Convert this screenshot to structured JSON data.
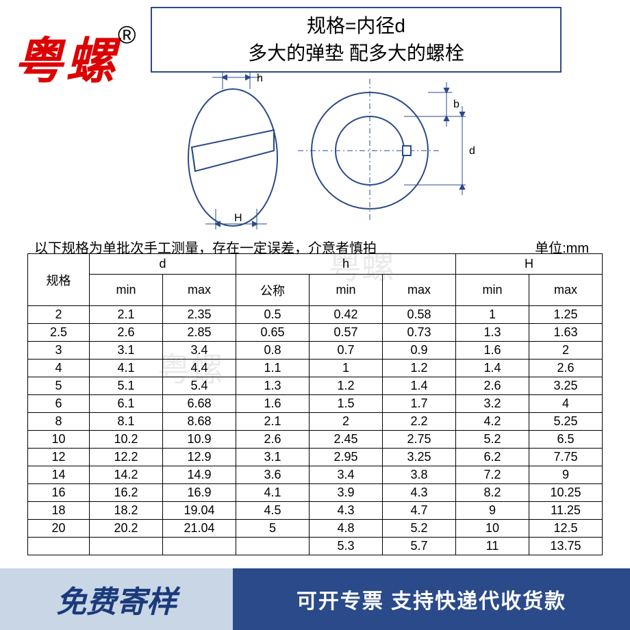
{
  "brand": {
    "text": "粤螺",
    "reg": "®"
  },
  "header": {
    "line1": "规格=内径d",
    "line2": "多大的弹垫 配多大的螺栓"
  },
  "diagram": {
    "labels": {
      "h": "h",
      "H": "H",
      "b": "b",
      "d": "d"
    },
    "stroke": "#2a4a8a"
  },
  "note": "以下规格为单批次手工测量，存在一定误差，介意者慎拍",
  "unit": "单位:mm",
  "watermark": "粤螺",
  "table": {
    "header_groups": [
      "d",
      "h",
      "H"
    ],
    "spec_label": "规格",
    "sub_headers": [
      "min",
      "max",
      "公称",
      "min",
      "max",
      "min",
      "max"
    ],
    "rows": [
      [
        "2",
        "2.1",
        "2.35",
        "0.5",
        "0.42",
        "0.58",
        "1",
        "1.25"
      ],
      [
        "2.5",
        "2.6",
        "2.85",
        "0.65",
        "0.57",
        "0.73",
        "1.3",
        "1.63"
      ],
      [
        "3",
        "3.1",
        "3.4",
        "0.8",
        "0.7",
        "0.9",
        "1.6",
        "2"
      ],
      [
        "4",
        "4.1",
        "4.4",
        "1.1",
        "1",
        "1.2",
        "1.4",
        "2.6"
      ],
      [
        "5",
        "5.1",
        "5.4",
        "1.3",
        "1.2",
        "1.4",
        "2.6",
        "3.25"
      ],
      [
        "6",
        "6.1",
        "6.68",
        "1.6",
        "1.5",
        "1.7",
        "3.2",
        "4"
      ],
      [
        "8",
        "8.1",
        "8.68",
        "2.1",
        "2",
        "2.2",
        "4.2",
        "5.25"
      ],
      [
        "10",
        "10.2",
        "10.9",
        "2.6",
        "2.45",
        "2.75",
        "5.2",
        "6.5"
      ],
      [
        "12",
        "12.2",
        "12.9",
        "3.1",
        "2.95",
        "3.25",
        "6.2",
        "7.75"
      ],
      [
        "14",
        "14.2",
        "14.9",
        "3.6",
        "3.4",
        "3.8",
        "7.2",
        "9"
      ],
      [
        "16",
        "16.2",
        "16.9",
        "4.1",
        "3.9",
        "4.3",
        "8.2",
        "10.25"
      ],
      [
        "18",
        "18.2",
        "19.04",
        "4.5",
        "4.3",
        "4.7",
        "9",
        "11.25"
      ],
      [
        "20",
        "20.2",
        "21.04",
        "5",
        "4.8",
        "5.2",
        "10",
        "12.5"
      ],
      [
        "",
        "",
        "",
        "",
        "5.3",
        "5.7",
        "11",
        "13.75"
      ]
    ]
  },
  "footer": {
    "left": "免费寄样",
    "right": "可开专票 支持快递代收货款"
  },
  "colors": {
    "brand": "#d00",
    "stroke": "#2a4a8a",
    "footer_left_bg": "#c9d6e6",
    "footer_left_fg": "#1a3a7a",
    "footer_right_bg": "#2a4a8a",
    "footer_right_fg": "#ffffff"
  }
}
